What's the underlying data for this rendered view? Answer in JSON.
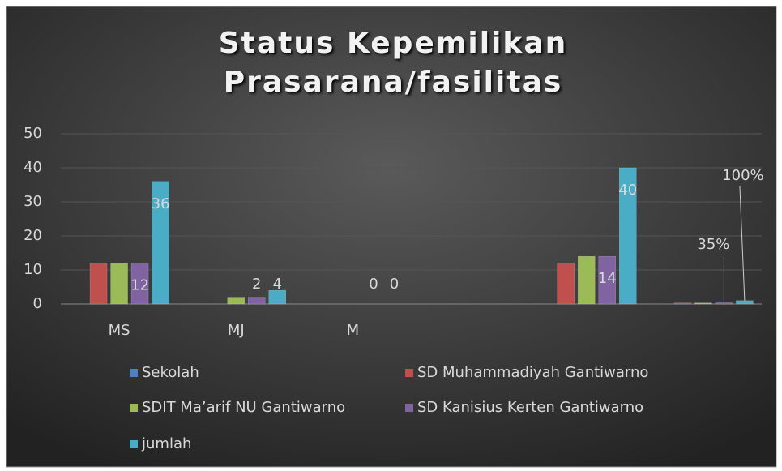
{
  "chart_data": {
    "type": "bar",
    "title": "Status Kepemilikan Prasarana/fasilitas",
    "categories": [
      "MS",
      "MJ",
      "M",
      null,
      null,
      null
    ],
    "series": [
      {
        "name": "Sekolah",
        "color": "#4f81bd",
        "values": [
          null,
          null,
          null,
          null,
          null,
          null
        ]
      },
      {
        "name": "SD Muhammadiyah Gantiwarno",
        "color": "#c0504d",
        "values": [
          12,
          0,
          0,
          null,
          12,
          0.3
        ]
      },
      {
        "name": "SDIT Ma’arif NU Gantiwarno",
        "color": "#9bbb59",
        "values": [
          12,
          2,
          0,
          null,
          14,
          0.3
        ]
      },
      {
        "name": "SD Kanisius Kerten Gantiwarno",
        "color": "#8064a2",
        "values": [
          12,
          2,
          0,
          null,
          14,
          0.35
        ],
        "value_labels": [
          "12",
          "2",
          "0",
          null,
          "14",
          "35%"
        ]
      },
      {
        "name": "jumlah",
        "color": "#4bacc6",
        "values": [
          36,
          4,
          0,
          null,
          40,
          1
        ],
        "value_labels": [
          "36",
          "4",
          "0",
          null,
          "40",
          "100%"
        ]
      }
    ],
    "ylim": [
      0,
      50
    ],
    "yticks": [
      0,
      10,
      20,
      30,
      40,
      50
    ],
    "grid": true,
    "legend": "bottom"
  }
}
